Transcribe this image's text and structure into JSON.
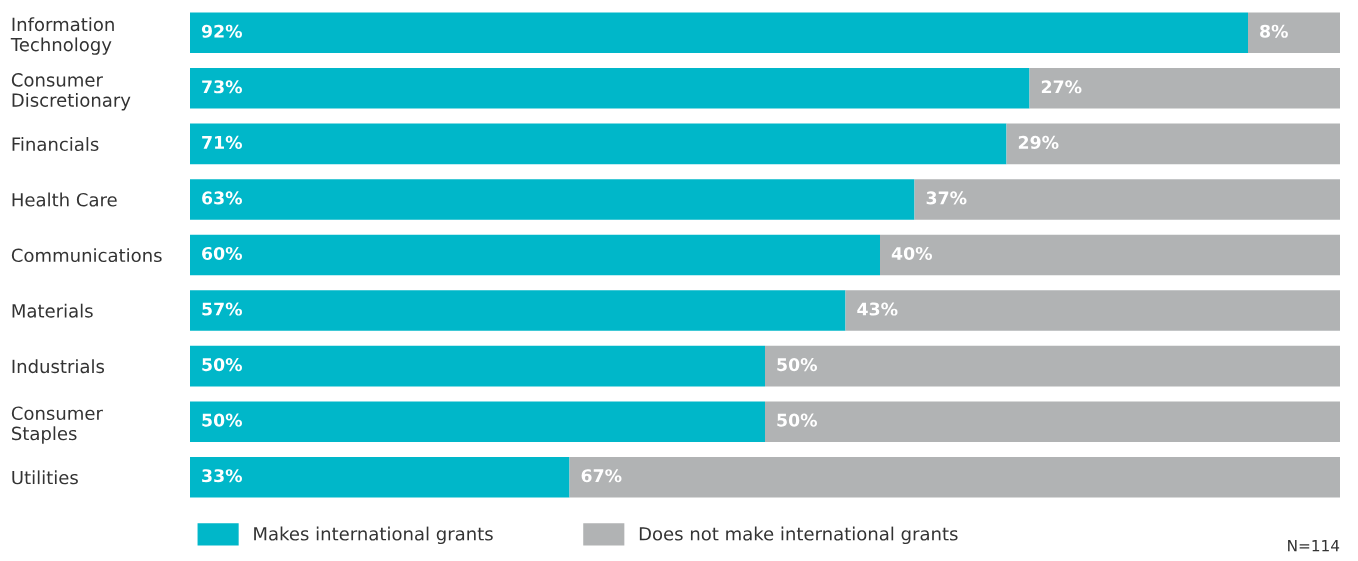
{
  "chart_data": {
    "type": "bar",
    "orientation": "horizontal",
    "stacked": true,
    "categories": [
      "Information\nTechnology",
      "Consumer\nDiscretionary",
      "Financials",
      "Health Care",
      "Communications",
      "Materials",
      "Industrials",
      "Consumer\nStaples",
      "Utilities"
    ],
    "series": [
      {
        "name": "Makes international grants",
        "color": "#00b7c9",
        "values": [
          92,
          73,
          71,
          63,
          60,
          57,
          50,
          50,
          33
        ],
        "value_labels": [
          "92%",
          "73%",
          "71%",
          "63%",
          "60%",
          "57%",
          "50%",
          "50%",
          "33%"
        ]
      },
      {
        "name": "Does not make international grants",
        "color": "#b1b3b4",
        "values": [
          8,
          27,
          29,
          37,
          40,
          43,
          50,
          50,
          67
        ],
        "value_labels": [
          "8%",
          "27%",
          "29%",
          "37%",
          "40%",
          "43%",
          "50%",
          "50%",
          "67%"
        ]
      }
    ],
    "xlim": [
      0,
      100
    ],
    "tick_labels": "y",
    "grid": false,
    "legend": "bottom",
    "annotations": [
      "N=114"
    ]
  }
}
